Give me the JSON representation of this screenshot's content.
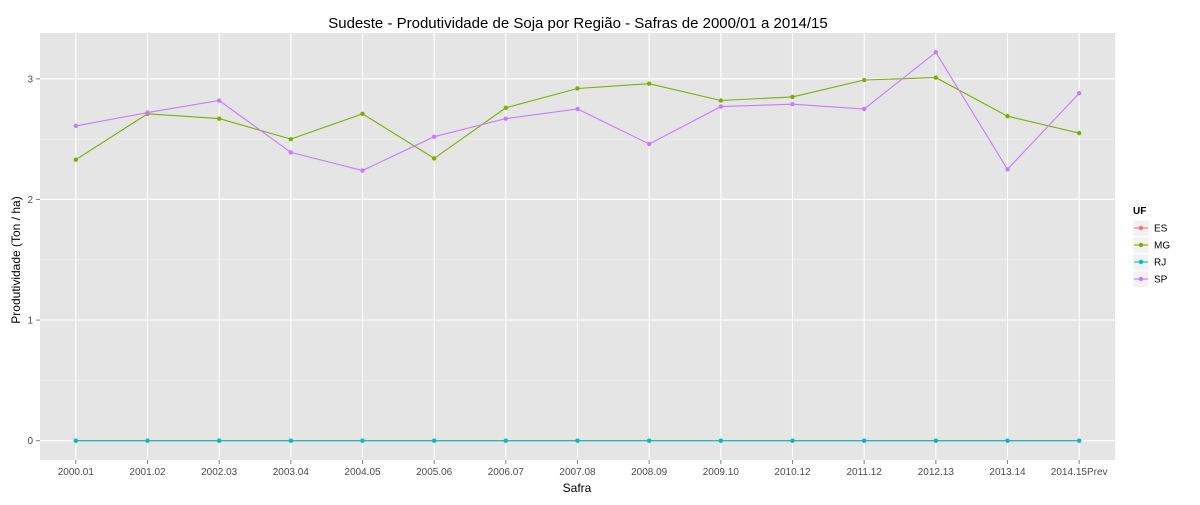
{
  "chart_data": {
    "type": "line",
    "title": "Sudeste  - Produtividade de Soja por Região - Safras de 2000/01 a 2014/15",
    "xlabel": "Safra",
    "ylabel": "Produtividade (Ton / ha)",
    "categories": [
      "2000.01",
      "2001.02",
      "2002.03",
      "2003.04",
      "2004.05",
      "2005.06",
      "2006.07",
      "2007.08",
      "2008.09",
      "2009.10",
      "2010.12",
      "2011.12",
      "2012.13",
      "2013.14",
      "2014.15Prev"
    ],
    "y_ticks": [
      "0",
      "1",
      "2",
      "3"
    ],
    "ylim": [
      -0.16,
      3.38
    ],
    "grid": true,
    "legend": {
      "title": "UF",
      "placement": "right"
    },
    "series": [
      {
        "name": "ES",
        "color": "#F8766D",
        "values": [
          0,
          0,
          0,
          0,
          0,
          0,
          0,
          0,
          0,
          0,
          0,
          0,
          0,
          0,
          0
        ]
      },
      {
        "name": "MG",
        "color": "#7CAE00",
        "values": [
          2.33,
          2.71,
          2.67,
          2.5,
          2.71,
          2.34,
          2.76,
          2.92,
          2.96,
          2.82,
          2.85,
          2.99,
          3.01,
          2.69,
          2.55
        ]
      },
      {
        "name": "RJ",
        "color": "#00BFC4",
        "values": [
          0,
          0,
          0,
          0,
          0,
          0,
          0,
          0,
          0,
          0,
          0,
          0,
          0,
          0,
          0
        ]
      },
      {
        "name": "SP",
        "color": "#C77CFF",
        "values": [
          2.61,
          2.72,
          2.82,
          2.39,
          2.24,
          2.52,
          2.67,
          2.75,
          2.46,
          2.77,
          2.79,
          2.75,
          3.22,
          2.25,
          2.88
        ]
      }
    ]
  }
}
